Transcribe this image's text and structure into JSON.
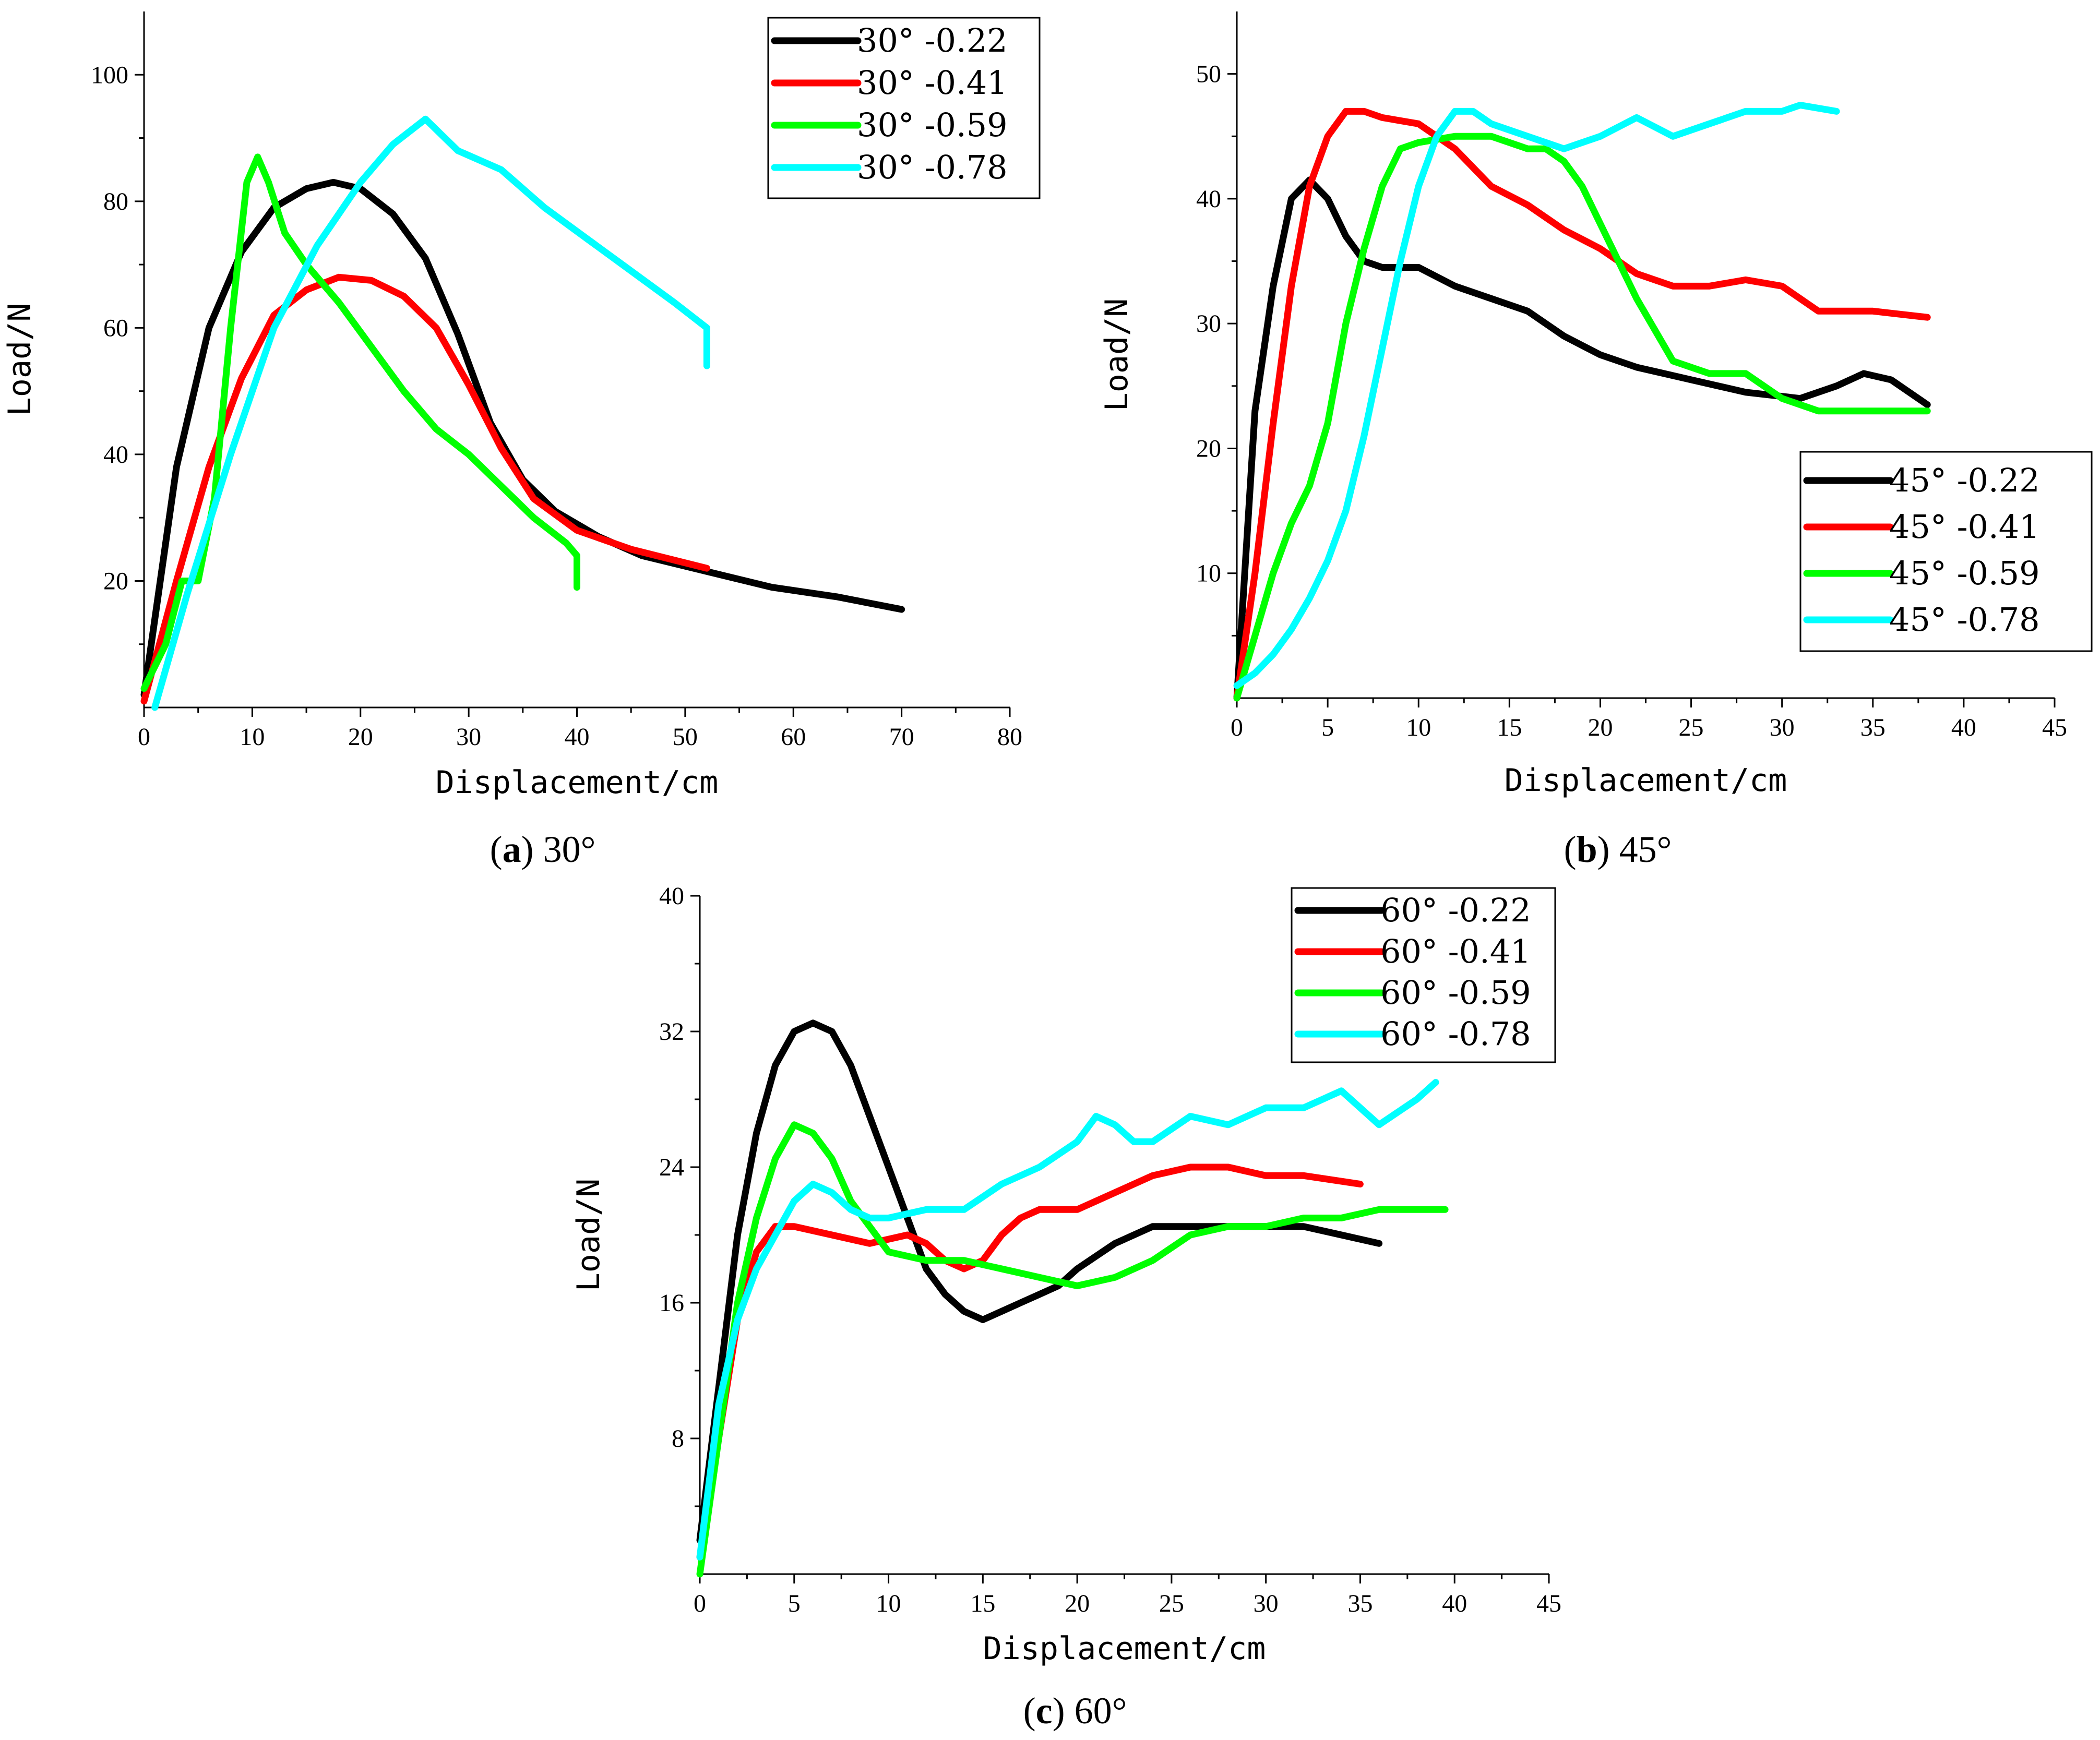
{
  "chart_data": [
    {
      "type": "line",
      "panel": "a",
      "caption_letter": "a",
      "caption_angle": "30°",
      "xlabel": "Displacement/cm",
      "ylabel": "Load/N",
      "xlim": [
        0,
        80
      ],
      "ylim": [
        0,
        110
      ],
      "xticks": [
        0,
        10,
        20,
        30,
        40,
        50,
        60,
        70,
        80
      ],
      "yticks": [
        20,
        40,
        60,
        80,
        100
      ],
      "legend_position": "top-right",
      "series": [
        {
          "name": "30° -0.22",
          "color": "#000000",
          "x": [
            0,
            3,
            6,
            9,
            12,
            15,
            17.5,
            20,
            23,
            26,
            29,
            32,
            35,
            38,
            42,
            46,
            52,
            58,
            64,
            70
          ],
          "y": [
            2,
            38,
            60,
            72,
            79,
            82,
            83,
            82,
            78,
            71,
            59,
            45,
            36,
            31,
            27,
            24,
            21.5,
            19,
            17.5,
            15.5
          ]
        },
        {
          "name": "30° -0.41",
          "color": "#ff0000",
          "x": [
            0,
            3,
            6,
            9,
            12,
            15,
            18,
            21,
            24,
            27,
            30,
            33,
            36,
            40,
            45,
            52
          ],
          "y": [
            1,
            20,
            38,
            52,
            62,
            66,
            68,
            67.5,
            65,
            60,
            51,
            41,
            33,
            28,
            25,
            22
          ]
        },
        {
          "name": "30° -0.59",
          "color": "#00ff00",
          "x": [
            0,
            2,
            3.5,
            5,
            6.5,
            8,
            9.5,
            10.5,
            11.5,
            13,
            15,
            18,
            21,
            24,
            27,
            30,
            33,
            36,
            39,
            40,
            40
          ],
          "y": [
            3,
            10,
            20,
            20,
            33,
            60,
            83,
            87,
            83,
            75,
            70,
            64,
            57,
            50,
            44,
            40,
            35,
            30,
            26,
            24,
            19
          ]
        },
        {
          "name": "30° -0.78",
          "color": "#00ffff",
          "x": [
            1,
            4,
            8,
            12,
            16,
            20,
            23,
            26,
            29,
            33,
            37,
            41,
            45,
            49,
            52,
            52
          ],
          "y": [
            0,
            18,
            40,
            60,
            73,
            83,
            89,
            93,
            88,
            85,
            79,
            74,
            69,
            64,
            60,
            54
          ]
        }
      ]
    },
    {
      "type": "line",
      "panel": "b",
      "caption_letter": "b",
      "caption_angle": "45°",
      "xlabel": "Displacement/cm",
      "ylabel": "Load/N",
      "xlim": [
        0,
        45
      ],
      "ylim": [
        0,
        55
      ],
      "xticks": [
        0,
        5,
        10,
        15,
        20,
        25,
        30,
        35,
        40,
        45
      ],
      "yticks": [
        10,
        20,
        30,
        40,
        50
      ],
      "legend_position": "center-right",
      "series": [
        {
          "name": "45° -0.22",
          "color": "#000000",
          "x": [
            0,
            1,
            2,
            3,
            4,
            5,
            6,
            7,
            8,
            10,
            12,
            14,
            16,
            18,
            20,
            22,
            25,
            28,
            31,
            33,
            34.5,
            36,
            38
          ],
          "y": [
            0,
            23,
            33,
            40,
            41.5,
            40,
            37,
            35,
            34.5,
            34.5,
            33,
            32,
            31,
            29,
            27.5,
            26.5,
            25.5,
            24.5,
            24,
            25,
            26,
            25.5,
            23.5
          ]
        },
        {
          "name": "45° -0.41",
          "color": "#ff0000",
          "x": [
            0,
            1,
            2,
            3,
            4,
            5,
            6,
            7,
            8,
            10,
            12,
            14,
            16,
            18,
            20,
            22,
            24,
            26,
            28,
            30,
            32,
            35,
            38
          ],
          "y": [
            0,
            10,
            22,
            33,
            41,
            45,
            47,
            47,
            46.5,
            46,
            44,
            41,
            39.5,
            37.5,
            36,
            34,
            33,
            33,
            33.5,
            33,
            31,
            31,
            30.5
          ]
        },
        {
          "name": "45° -0.59",
          "color": "#00ff00",
          "x": [
            0,
            1,
            2,
            3,
            4,
            5,
            6,
            7,
            8,
            9,
            10,
            12,
            14,
            16,
            17,
            18,
            19,
            20,
            22,
            24,
            26,
            28,
            30,
            32,
            35,
            38
          ],
          "y": [
            0,
            5,
            10,
            14,
            17,
            22,
            30,
            36,
            41,
            44,
            44.5,
            45,
            45,
            44,
            44,
            43,
            41,
            38,
            32,
            27,
            26,
            26,
            24,
            23,
            23,
            23
          ]
        },
        {
          "name": "45° -0.78",
          "color": "#00ffff",
          "x": [
            0,
            1,
            2,
            3,
            4,
            5,
            6,
            7,
            8,
            9,
            10,
            11,
            12,
            13,
            14,
            16,
            18,
            20,
            22,
            24,
            26,
            28,
            30,
            31,
            33
          ],
          "y": [
            1,
            2,
            3.5,
            5.5,
            8,
            11,
            15,
            21,
            28,
            35,
            41,
            45,
            47,
            47,
            46,
            45,
            44,
            45,
            46.5,
            45,
            46,
            47,
            47,
            47.5,
            47
          ]
        }
      ]
    },
    {
      "type": "line",
      "panel": "c",
      "caption_letter": "c",
      "caption_angle": "60°",
      "xlabel": "Displacement/cm",
      "ylabel": "Load/N",
      "xlim": [
        0,
        45
      ],
      "ylim": [
        0,
        40
      ],
      "xticks": [
        0,
        5,
        10,
        15,
        20,
        25,
        30,
        35,
        40,
        45
      ],
      "yticks": [
        8,
        16,
        24,
        32,
        40
      ],
      "legend_position": "top-right",
      "series": [
        {
          "name": "60° -0.22",
          "color": "#000000",
          "x": [
            0,
            1,
            2,
            3,
            4,
            5,
            6,
            7,
            8,
            9,
            10,
            11,
            12,
            13,
            14,
            15,
            16,
            17,
            18,
            19,
            20,
            22,
            24,
            26,
            28,
            30,
            32,
            34,
            36
          ],
          "y": [
            2,
            11,
            20,
            26,
            30,
            32,
            32.5,
            32,
            30,
            27,
            24,
            21,
            18,
            16.5,
            15.5,
            15,
            15.5,
            16,
            16.5,
            17,
            18,
            19.5,
            20.5,
            20.5,
            20.5,
            20.5,
            20.5,
            20,
            19.5
          ]
        },
        {
          "name": "60° -0.41",
          "color": "#ff0000",
          "x": [
            0,
            1,
            2,
            3,
            4,
            5,
            7,
            9,
            11,
            12,
            13,
            14,
            15,
            16,
            17,
            18,
            20,
            22,
            24,
            26,
            28,
            30,
            32,
            35
          ],
          "y": [
            1,
            8,
            15,
            19,
            20.5,
            20.5,
            20,
            19.5,
            20,
            19.5,
            18.5,
            18,
            18.5,
            20,
            21,
            21.5,
            21.5,
            22.5,
            23.5,
            24,
            24,
            23.5,
            23.5,
            23
          ]
        },
        {
          "name": "60° -0.59",
          "color": "#00ff00",
          "x": [
            0,
            1,
            2,
            3,
            4,
            5,
            6,
            7,
            8,
            9,
            10,
            12,
            14,
            16,
            18,
            20,
            22,
            24,
            26,
            28,
            30,
            32,
            34,
            36,
            38,
            39.5
          ],
          "y": [
            0,
            8,
            16,
            21,
            24.5,
            26.5,
            26,
            24.5,
            22,
            20.5,
            19,
            18.5,
            18.5,
            18,
            17.5,
            17,
            17.5,
            18.5,
            20,
            20.5,
            20.5,
            21,
            21,
            21.5,
            21.5,
            21.5
          ]
        },
        {
          "name": "60° -0.78",
          "color": "#00ffff",
          "x": [
            0,
            1,
            2,
            3,
            4,
            5,
            6,
            7,
            8,
            9,
            10,
            12,
            14,
            16,
            18,
            20,
            21,
            22,
            23,
            24,
            26,
            28,
            30,
            32,
            34,
            36,
            38,
            39
          ],
          "y": [
            1,
            10,
            15,
            18,
            20,
            22,
            23,
            22.5,
            21.5,
            21,
            21,
            21.5,
            21.5,
            23,
            24,
            25.5,
            27,
            26.5,
            25.5,
            25.5,
            27,
            26.5,
            27.5,
            27.5,
            28.5,
            26.5,
            28,
            29
          ]
        }
      ]
    }
  ]
}
